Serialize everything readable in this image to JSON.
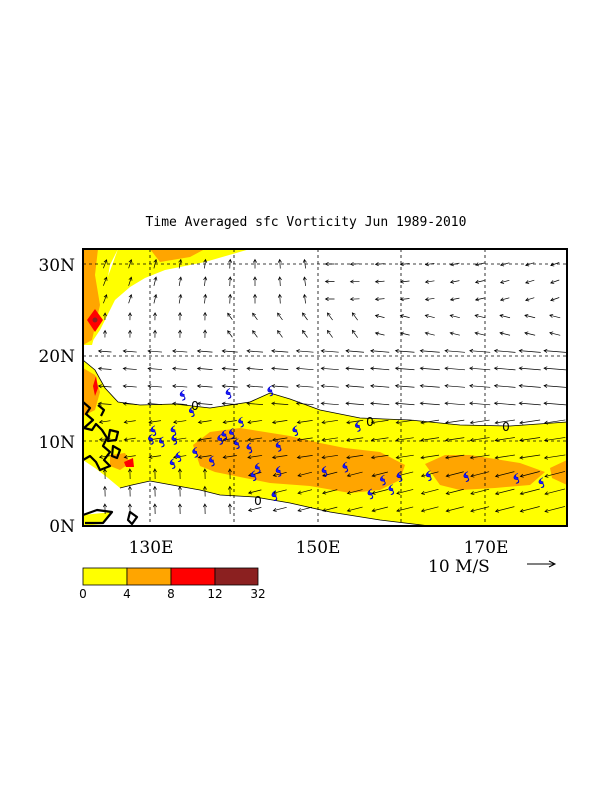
{
  "title": "Time Averaged sfc Vorticity  Jun 1989-2010",
  "lat_labels": [
    "30N",
    "20N",
    "10N",
    "0N"
  ],
  "lon_labels": [
    "130E",
    "150E",
    "170E"
  ],
  "reference_vector_label": "10 M/S",
  "contour_labels": [
    "0",
    "0",
    "0",
    "0"
  ],
  "colorbar": {
    "ticks": [
      "0",
      "4",
      "8",
      "12",
      "32"
    ],
    "colors": [
      "#ffff00",
      "#ffa500",
      "#ff0000",
      "#8b2020"
    ]
  },
  "chart_data": {
    "type": "heatmap",
    "variable": "sfc Vorticity",
    "period": "Jun 1989-2010",
    "lon_range_deg_east": [
      120,
      178
    ],
    "lat_range_deg_north": [
      0,
      32
    ],
    "levels": [
      0,
      4,
      8,
      12,
      32
    ],
    "reference_vector": "10 M/S",
    "typhoon_markers": [
      [
        132,
        15.1
      ],
      [
        133.1,
        13.2
      ],
      [
        137.5,
        15.3
      ],
      [
        142.5,
        15.6
      ],
      [
        139,
        12.0
      ],
      [
        128.5,
        11.0
      ],
      [
        128.2,
        10.0
      ],
      [
        129.5,
        9.7
      ],
      [
        130.9,
        11.0
      ],
      [
        131,
        10.0
      ],
      [
        137,
        10.5
      ],
      [
        137.9,
        10.7
      ],
      [
        136.5,
        10.0
      ],
      [
        138.5,
        9.5
      ],
      [
        140,
        9.0
      ],
      [
        143.5,
        9.2
      ],
      [
        145.5,
        11.0
      ],
      [
        153,
        11.5
      ],
      [
        131.5,
        8.0
      ],
      [
        135.5,
        7.5
      ],
      [
        130.8,
        7.2
      ],
      [
        141,
        6.7
      ],
      [
        140.5,
        5.8
      ],
      [
        143.5,
        6.3
      ],
      [
        149,
        6.3
      ],
      [
        151.5,
        6.8
      ],
      [
        158,
        5.7
      ],
      [
        161.5,
        5.8
      ],
      [
        166,
        5.7
      ],
      [
        172,
        5.5
      ],
      [
        175,
        5.0
      ],
      [
        143,
        3.5
      ],
      [
        154.5,
        3.7
      ],
      [
        157,
        4.2
      ],
      [
        156,
        5.3
      ],
      [
        133.5,
        8.5
      ]
    ]
  }
}
